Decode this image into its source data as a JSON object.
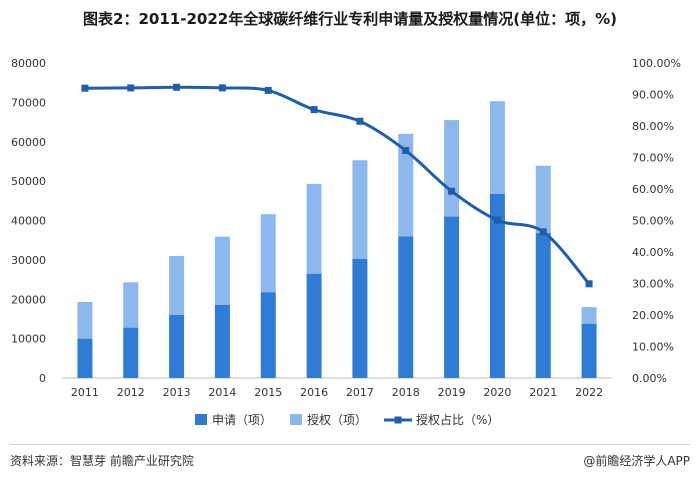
{
  "chart_data": {
    "type": "bar",
    "title": "图表2：2011-2022年全球碳纤维行业专利申请量及授权量情况(单位：项，%)",
    "categories": [
      "2011",
      "2012",
      "2013",
      "2014",
      "2015",
      "2016",
      "2017",
      "2018",
      "2019",
      "2020",
      "2021",
      "2022"
    ],
    "series": [
      {
        "name": "申请（项）",
        "kind": "stacked-bar",
        "color": "#2e7cd6",
        "values": [
          10000,
          12800,
          16000,
          18600,
          21800,
          26500,
          30300,
          36000,
          41000,
          46800,
          36800,
          13800
        ]
      },
      {
        "name": "授权（项）",
        "kind": "stacked-bar",
        "color": "#8cb8ee",
        "values": [
          9300,
          11500,
          15000,
          17300,
          19800,
          22800,
          25000,
          26000,
          24500,
          23500,
          17100,
          4200
        ]
      },
      {
        "name": "授权占比（%）",
        "kind": "line",
        "axis": "right",
        "color": "#1f5ea8",
        "values": [
          92.0,
          92.1,
          92.3,
          92.1,
          91.3,
          85.2,
          81.5,
          72.2,
          59.3,
          50.1,
          46.4,
          29.9
        ]
      }
    ],
    "y_left": {
      "min": 0,
      "max": 80000,
      "ticks": [
        "0",
        "10000",
        "20000",
        "30000",
        "40000",
        "50000",
        "60000",
        "70000",
        "80000"
      ]
    },
    "y_right": {
      "min": 0,
      "max": 100,
      "ticks": [
        "0.00%",
        "10.00%",
        "20.00%",
        "30.00%",
        "40.00%",
        "50.00%",
        "60.00%",
        "70.00%",
        "80.00%",
        "90.00%",
        "100.00%"
      ]
    },
    "legend_position": "bottom"
  },
  "footer": {
    "source": "资料来源：智慧芽 前瞻产业研究院",
    "app": "@前瞻经济学人APP"
  }
}
